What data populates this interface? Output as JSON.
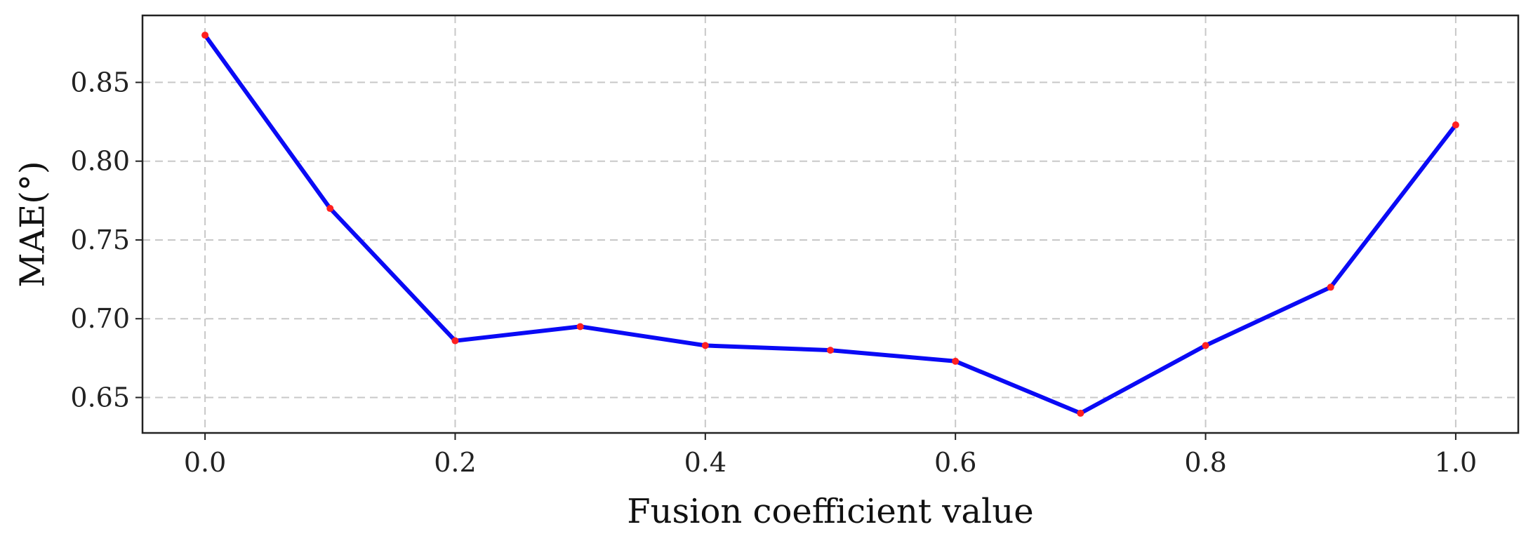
{
  "chart_data": {
    "type": "line",
    "title": "",
    "xlabel": "Fusion coefficient value",
    "ylabel": "MAE(°)",
    "x": [
      0.0,
      0.1,
      0.2,
      0.3,
      0.4,
      0.5,
      0.6,
      0.7,
      0.8,
      0.9,
      1.0
    ],
    "series": [
      {
        "values": [
          0.88,
          0.77,
          0.686,
          0.695,
          0.683,
          0.68,
          0.673,
          0.64,
          0.683,
          0.72,
          0.823
        ],
        "line_color": "#0a0af5",
        "marker_color": "#ff2020"
      }
    ],
    "xlim": [
      -0.05,
      1.05
    ],
    "ylim": [
      0.6275,
      0.8925
    ],
    "xticks": [
      0.0,
      0.2,
      0.4,
      0.6,
      0.8,
      1.0
    ],
    "xtick_labels": [
      "0.0",
      "0.2",
      "0.4",
      "0.6",
      "0.8",
      "1.0"
    ],
    "yticks": [
      0.65,
      0.7,
      0.75,
      0.8,
      0.85
    ],
    "ytick_labels": [
      "0.65",
      "0.70",
      "0.75",
      "0.80",
      "0.85"
    ],
    "grid": true,
    "legend": "none"
  }
}
